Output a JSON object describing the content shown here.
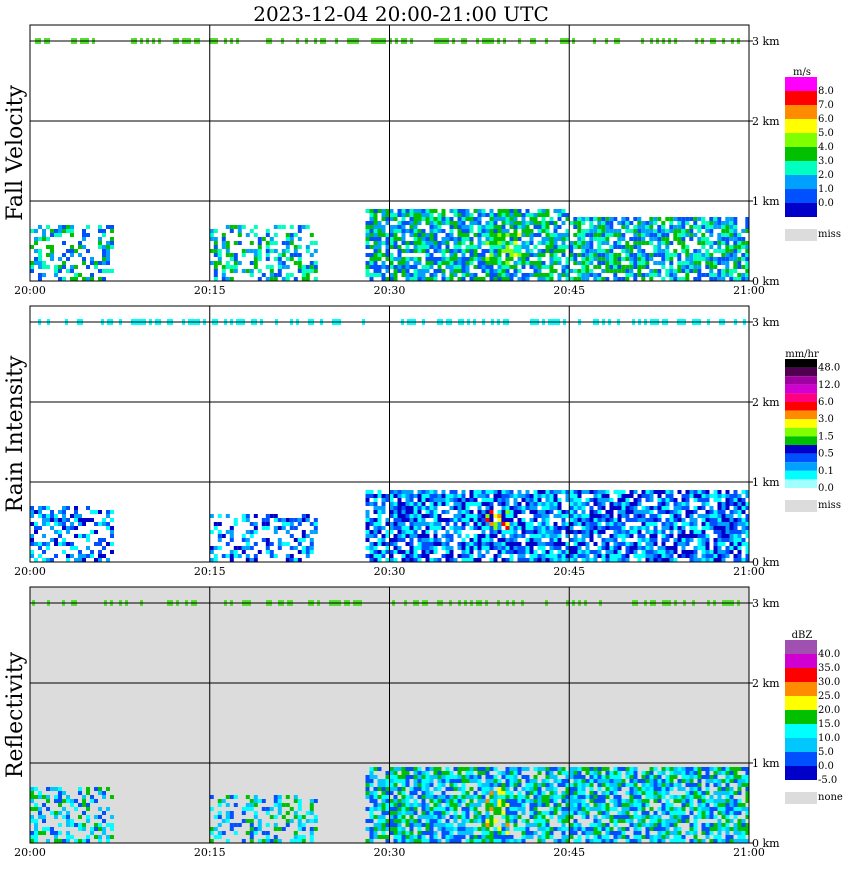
{
  "title": "2023-12-04   20:00-21:00 UTC",
  "chart_data": [
    {
      "type": "heatmap",
      "ylabel": "Fall Velocity",
      "units": "m/s",
      "x_ticks": [
        "20:00",
        "20:15",
        "20:30",
        "20:45",
        "21:00"
      ],
      "y_ticks": [
        "0 km",
        "1 km",
        "2 km",
        "3 km"
      ],
      "xlim": [
        "20:00",
        "21:00"
      ],
      "ylim_km": [
        0,
        3.2
      ],
      "background": "#ffffff",
      "grid": true,
      "legend_placement": "right",
      "legend": [
        {
          "label": "8.0",
          "color": "#ff00ff"
        },
        {
          "label": "7.0",
          "color": "#ff0000"
        },
        {
          "label": "6.0",
          "color": "#ff8c00"
        },
        {
          "label": "5.0",
          "color": "#ffff00"
        },
        {
          "label": "4.0",
          "color": "#7fff00"
        },
        {
          "label": "3.0",
          "color": "#00c000"
        },
        {
          "label": "2.0",
          "color": "#00ffc0"
        },
        {
          "label": "1.0",
          "color": "#00a0ff"
        },
        {
          "label": "0.0",
          "color": "#0050ff"
        },
        {
          "label": "",
          "color": "#0000c8"
        }
      ],
      "miss_label": "miss",
      "miss_color": "#dcdcdc",
      "field": {
        "cells": [
          {
            "t": "20:00-20:07",
            "z_km": [
              0,
              0.7
            ],
            "dominant": "1.0-2.0"
          },
          {
            "t": "20:15-20:24",
            "z_km": [
              0,
              0.7
            ],
            "dominant": "1.0-2.0"
          },
          {
            "t": "20:28-20:45",
            "z_km": [
              0,
              0.9
            ],
            "dominant": "1.0-3.0"
          },
          {
            "t": "20:38-20:41",
            "z_km": [
              0.2,
              0.6
            ],
            "dominant": "4.0-5.0"
          },
          {
            "t": "20:45-21:00",
            "z_km": [
              0,
              0.8
            ],
            "dominant": "1.0-3.0"
          }
        ],
        "near_3km_band": "3.0-4.0"
      }
    },
    {
      "type": "heatmap",
      "ylabel": "Rain Intensity",
      "units": "mm/hr",
      "x_ticks": [
        "20:00",
        "20:15",
        "20:30",
        "20:45",
        "21:00"
      ],
      "y_ticks": [
        "0 km",
        "1 km",
        "2 km",
        "3 km"
      ],
      "xlim": [
        "20:00",
        "21:00"
      ],
      "ylim_km": [
        0,
        3.2
      ],
      "background": "#ffffff",
      "grid": true,
      "legend_placement": "right",
      "legend": [
        {
          "label": "48.0",
          "color": "#000000"
        },
        {
          "label": "",
          "color": "#500050"
        },
        {
          "label": "12.0",
          "color": "#a000a0"
        },
        {
          "label": "",
          "color": "#d000d0"
        },
        {
          "label": "6.0",
          "color": "#ff0080"
        },
        {
          "label": "",
          "color": "#ff0000"
        },
        {
          "label": "3.0",
          "color": "#ff8c00"
        },
        {
          "label": "",
          "color": "#ffff00"
        },
        {
          "label": "1.5",
          "color": "#7fff00"
        },
        {
          "label": "",
          "color": "#00c000"
        },
        {
          "label": "0.5",
          "color": "#0000c8"
        },
        {
          "label": "",
          "color": "#0050ff"
        },
        {
          "label": "0.1",
          "color": "#00a0ff"
        },
        {
          "label": "",
          "color": "#00ffff"
        },
        {
          "label": "0.0",
          "color": "#a0ffff"
        }
      ],
      "miss_label": "miss",
      "miss_color": "#dcdcdc",
      "field": {
        "cells": [
          {
            "t": "20:00-20:07",
            "z_km": [
              0,
              0.7
            ],
            "dominant": "0.0-0.1"
          },
          {
            "t": "20:15-20:24",
            "z_km": [
              0,
              0.6
            ],
            "dominant": "0.0-0.1"
          },
          {
            "t": "20:28-21:00",
            "z_km": [
              0,
              0.9
            ],
            "dominant": "0.1"
          },
          {
            "t": "20:38-20:40",
            "z_km": [
              0.4,
              0.7
            ],
            "dominant": "1.5"
          }
        ]
      }
    },
    {
      "type": "heatmap",
      "ylabel": "Reflectivity",
      "units": "dBZ",
      "x_ticks": [
        "20:00",
        "20:15",
        "20:30",
        "20:45",
        "21:00"
      ],
      "y_ticks": [
        "0 km",
        "1 km",
        "2 km",
        "3 km"
      ],
      "xlim": [
        "20:00",
        "21:00"
      ],
      "ylim_km": [
        0,
        3.2
      ],
      "background": "#dcdcdc",
      "grid": true,
      "legend_placement": "right",
      "legend": [
        {
          "label": "40.0",
          "color": "#a050b0"
        },
        {
          "label": "35.0",
          "color": "#d000d0"
        },
        {
          "label": "30.0",
          "color": "#ff0000"
        },
        {
          "label": "25.0",
          "color": "#ff8c00"
        },
        {
          "label": "20.0",
          "color": "#ffff00"
        },
        {
          "label": "15.0",
          "color": "#00c000"
        },
        {
          "label": "10.0",
          "color": "#00ffff"
        },
        {
          "label": "5.0",
          "color": "#00c8ff"
        },
        {
          "label": "0.0",
          "color": "#0050ff"
        },
        {
          "label": "-5.0",
          "color": "#0000c8"
        }
      ],
      "miss_label": "none",
      "miss_color": "#dcdcdc",
      "field": {
        "cells": [
          {
            "t": "20:00-20:07",
            "z_km": [
              0,
              0.7
            ],
            "dominant": "-5.0-0.0"
          },
          {
            "t": "20:15-20:24",
            "z_km": [
              0,
              0.6
            ],
            "dominant": "-5.0-0.0"
          },
          {
            "t": "20:28-21:00",
            "z_km": [
              0,
              0.95
            ],
            "dominant": "0.0-10.0"
          },
          {
            "t": "20:38-20:40",
            "z_km": [
              0.1,
              0.7
            ],
            "dominant": "15.0-20.0"
          }
        ]
      }
    }
  ]
}
